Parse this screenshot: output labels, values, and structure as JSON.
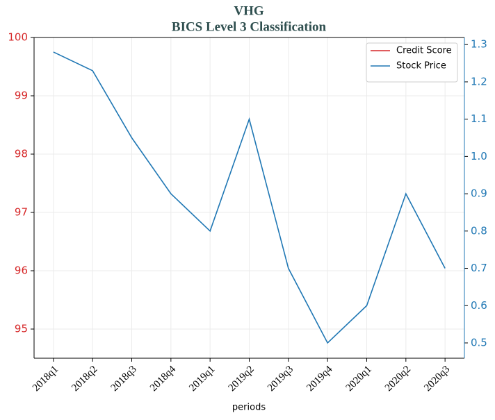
{
  "chart_data": {
    "type": "line",
    "title": "VHG",
    "subtitle": "BICS Level 3 Classification",
    "xlabel": "periods",
    "categories": [
      "2018q1",
      "2018q2",
      "2018q3",
      "2018q4",
      "2019q1",
      "2019q2",
      "2019q3",
      "2019q4",
      "2020q1",
      "2020q2",
      "2020q3"
    ],
    "series": [
      {
        "name": "Credit Score",
        "color": "#d62728",
        "values": [
          null,
          null,
          null,
          null,
          null,
          null,
          null,
          null,
          null,
          null,
          null
        ]
      },
      {
        "name": "Stock Price",
        "color": "#1f77b4",
        "axis": "y2",
        "values": [
          1.28,
          1.23,
          1.05,
          0.9,
          0.8,
          1.1,
          0.7,
          0.5,
          0.6,
          0.9,
          0.7
        ]
      }
    ],
    "ylim": [
      94.5,
      100
    ],
    "yticks": [
      95,
      96,
      97,
      98,
      99,
      100
    ],
    "y_color": "#d62728",
    "y2lim": [
      0.459,
      1.319
    ],
    "y2ticks": [
      0.5,
      0.6,
      0.7,
      0.8,
      0.9,
      {
        "value": 1,
        "label": "1.0"
      },
      1.1,
      1.2,
      1.3
    ],
    "y2_color": "#1f77b4",
    "grid": true,
    "legend": "upper right"
  }
}
